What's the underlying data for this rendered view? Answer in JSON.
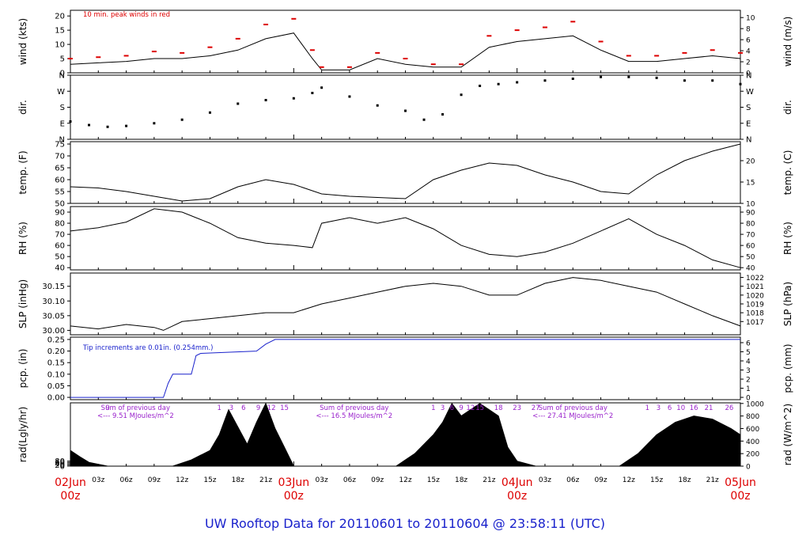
{
  "title": "UW Rooftop Data for 20110601  to  20110604 @ 23:58:11  (UTC)",
  "colors": {
    "title": "#1a22cc",
    "day": "#dd0000",
    "peak": "#dd0000",
    "rain": "#1a22cc",
    "rad_note": "#9a22cc",
    "trace": "#000000"
  },
  "chart_data": [
    {
      "id": "wind",
      "type": "line",
      "ylabel_left": "wind (kts)",
      "ylabel_right": "wind (m/s)",
      "ylim": [
        0,
        22
      ],
      "ticks_left": [
        0,
        5,
        10,
        15,
        20
      ],
      "ticks_right": {
        "0": 0,
        "2": 3.89,
        "4": 7.78,
        "6": 11.66,
        "8": 15.55,
        "10": 19.44
      },
      "annotation": "10 min. peak winds in red",
      "series": [
        {
          "name": "wind",
          "color": "#000000",
          "x": [
            0,
            3,
            6,
            9,
            12,
            15,
            18,
            21,
            24,
            26,
            27,
            30,
            33,
            36,
            39,
            42,
            45,
            48,
            51,
            54,
            57,
            60,
            63,
            66,
            69,
            72
          ],
          "y": [
            3,
            3.5,
            4,
            5,
            5,
            6,
            8,
            12,
            14,
            5,
            1,
            1,
            5,
            3,
            2,
            2,
            9,
            11,
            12,
            13,
            8,
            4,
            4,
            5,
            6,
            5
          ]
        },
        {
          "name": "10 min. peak winds",
          "color": "#dd0000",
          "x": [
            0,
            3,
            6,
            9,
            12,
            15,
            18,
            21,
            24,
            26,
            27,
            30,
            33,
            36,
            39,
            42,
            45,
            48,
            51,
            54,
            57,
            60,
            63,
            66,
            69,
            72
          ],
          "y": [
            5,
            5.5,
            6,
            7.5,
            7,
            9,
            12,
            17,
            19,
            8,
            2,
            2,
            7,
            5,
            3,
            3,
            13,
            15,
            16,
            18,
            11,
            6,
            6,
            7,
            8,
            7
          ]
        }
      ]
    },
    {
      "id": "dir",
      "type": "scatter",
      "ylabel_left": "dir.",
      "ylabel_right": "dir.",
      "ylim": [
        0,
        360
      ],
      "ticks_left": {
        "N": 0,
        "E": 90,
        "S": 180,
        "W": 270,
        "N2": 360
      },
      "tick_labels": [
        "N",
        "E",
        "S",
        "W",
        "N"
      ],
      "series": [
        {
          "name": "dir",
          "color": "#000000",
          "x": [
            0,
            2,
            4,
            6,
            9,
            12,
            15,
            18,
            21,
            24,
            26,
            27,
            30,
            33,
            36,
            38,
            40,
            42,
            44,
            46,
            48,
            51,
            54,
            57,
            60,
            63,
            66,
            69,
            72
          ],
          "y": [
            100,
            80,
            70,
            75,
            90,
            110,
            150,
            200,
            220,
            230,
            260,
            290,
            240,
            190,
            160,
            110,
            140,
            250,
            300,
            310,
            320,
            330,
            340,
            350,
            350,
            345,
            330,
            330,
            310
          ]
        }
      ]
    },
    {
      "id": "temp",
      "type": "line",
      "ylabel_left": "temp. (F)",
      "ylabel_right": "temp. (C)",
      "ylim": [
        50,
        76
      ],
      "ticks_left": [
        50,
        55,
        60,
        65,
        70,
        75
      ],
      "ticks_right": {
        "10": 50,
        "15": 59,
        "20": 68,
        "25": 77
      },
      "series": [
        {
          "name": "temp",
          "color": "#000000",
          "x": [
            0,
            3,
            6,
            9,
            12,
            15,
            18,
            21,
            24,
            27,
            30,
            33,
            36,
            39,
            42,
            45,
            48,
            51,
            54,
            57,
            60,
            63,
            66,
            69,
            72
          ],
          "y": [
            57,
            56.5,
            55,
            53,
            51,
            52,
            57,
            60,
            58,
            54,
            53,
            52.5,
            52,
            60,
            64,
            67,
            66,
            62,
            59,
            55,
            54,
            62,
            68,
            72,
            75
          ]
        }
      ]
    },
    {
      "id": "rh",
      "type": "line",
      "ylabel_left": "RH (%)",
      "ylabel_right": "RH (%)",
      "ylim": [
        38,
        95
      ],
      "ticks_left": [
        40,
        50,
        60,
        70,
        80,
        90
      ],
      "ticks_right": {
        "40": 40,
        "50": 50,
        "60": 60,
        "70": 70,
        "80": 80,
        "90": 90
      },
      "series": [
        {
          "name": "RH",
          "color": "#000000",
          "x": [
            0,
            3,
            6,
            9,
            12,
            15,
            18,
            21,
            24,
            26,
            27,
            30,
            33,
            36,
            39,
            42,
            45,
            48,
            51,
            54,
            57,
            60,
            63,
            66,
            69,
            72
          ],
          "y": [
            73,
            76,
            81,
            93,
            90,
            80,
            67,
            62,
            60,
            58,
            80,
            85,
            80,
            85,
            75,
            60,
            52,
            50,
            54,
            62,
            73,
            84,
            70,
            60,
            47,
            40
          ]
        }
      ]
    },
    {
      "id": "slp",
      "type": "line",
      "ylabel_left": "SLP (inHg)",
      "ylabel_right": "SLP (hPa)",
      "ylim": [
        29.985,
        30.195
      ],
      "ticks_left": [
        30.0,
        30.05,
        30.1,
        30.15
      ],
      "tick_labels_left": [
        "30.00",
        "30.05",
        "30.10",
        "30.15"
      ],
      "ticks_right": {
        "1017": 30.03,
        "1018": 30.06,
        "1019": 30.09,
        "1020": 30.12,
        "1021": 30.15,
        "1022": 30.18
      },
      "series": [
        {
          "name": "SLP",
          "color": "#000000",
          "x": [
            0,
            3,
            6,
            9,
            10,
            12,
            15,
            18,
            21,
            24,
            27,
            30,
            33,
            36,
            39,
            42,
            45,
            48,
            51,
            54,
            57,
            60,
            63,
            66,
            69,
            72
          ],
          "y": [
            30.015,
            30.005,
            30.02,
            30.01,
            30.0,
            30.03,
            30.04,
            30.05,
            30.06,
            30.06,
            30.09,
            30.11,
            30.13,
            30.15,
            30.16,
            30.15,
            30.12,
            30.12,
            30.16,
            30.18,
            30.17,
            30.15,
            30.13,
            30.09,
            30.05,
            30.015
          ]
        }
      ]
    },
    {
      "id": "pcp",
      "type": "line",
      "ylabel_left": "pcp. (in)",
      "ylabel_right": "pcp. (mm)",
      "ylim": [
        -0.01,
        0.26
      ],
      "ticks_left": [
        0.0,
        0.05,
        0.1,
        0.15,
        0.2,
        0.25
      ],
      "tick_labels_left": [
        "0.00",
        "0.05",
        "0.10",
        "0.15",
        "0.20",
        "0.25"
      ],
      "ticks_right": {
        "0": 0,
        "1": 0.0394,
        "2": 0.0787,
        "3": 0.1181,
        "4": 0.1575,
        "5": 0.1969,
        "6": 0.2362
      },
      "annotation": "Tip increments are 0.01in. (0.254mm.)",
      "series": [
        {
          "name": "pcp",
          "color": "#1a22cc",
          "x": [
            0,
            10,
            10.5,
            11,
            13,
            13.5,
            14,
            20,
            21,
            22,
            72
          ],
          "y": [
            0,
            0,
            0.06,
            0.1,
            0.1,
            0.18,
            0.19,
            0.2,
            0.23,
            0.25,
            0.25
          ]
        }
      ]
    },
    {
      "id": "rad",
      "type": "area",
      "ylabel_left": "rad(Lgly/hr)",
      "ylabel_right": "rad (W/m^2)",
      "ylim": [
        0,
        1010
      ],
      "ticks_left": [
        0,
        20,
        40,
        60,
        80
      ],
      "ticks_right": {
        "0": 0,
        "200": 200,
        "400": 400,
        "600": 600,
        "800": 800,
        "1000": 1000
      },
      "series": [
        {
          "name": "rad",
          "color": "#000000",
          "x": [
            0,
            1,
            2,
            4,
            11,
            13,
            15,
            16,
            17,
            19,
            20,
            21,
            22,
            23,
            24,
            28,
            35,
            37,
            39,
            40,
            41,
            42,
            43,
            44,
            45,
            46,
            47,
            48,
            50,
            59,
            61,
            63,
            65,
            67,
            69,
            71,
            72
          ],
          "y": [
            250,
            150,
            60,
            0,
            0,
            100,
            250,
            500,
            900,
            350,
            700,
            1000,
            600,
            300,
            0,
            0,
            0,
            200,
            500,
            700,
            1000,
            800,
            900,
            1000,
            900,
            800,
            300,
            80,
            0,
            0,
            200,
            500,
            700,
            800,
            750,
            600,
            500
          ]
        }
      ]
    }
  ],
  "hour_labels": {
    "positions": [
      3,
      6,
      9,
      12,
      15,
      18,
      21,
      27,
      30,
      33,
      36,
      39,
      42,
      45,
      51,
      54,
      57,
      60,
      63,
      66,
      69
    ],
    "labels": [
      "03z",
      "06z",
      "09z",
      "12z",
      "15z",
      "18z",
      "21z",
      "03z",
      "06z",
      "09z",
      "12z",
      "15z",
      "18z",
      "21z",
      "03z",
      "06z",
      "09z",
      "12z",
      "15z",
      "18z",
      "21z"
    ]
  },
  "day_labels": [
    {
      "x": 0,
      "line1": "02Jun",
      "line2": "00z"
    },
    {
      "x": 24,
      "line1": "03Jun",
      "line2": "00z"
    },
    {
      "x": 48,
      "line1": "04Jun",
      "line2": "00z"
    },
    {
      "x": 72,
      "line1": "05Jun",
      "line2": "00z"
    }
  ],
  "rad_notes": [
    {
      "x": 4,
      "text": "9"
    },
    {
      "x": 16,
      "text": "1"
    },
    {
      "x": 17.3,
      "text": "3"
    },
    {
      "x": 18.6,
      "text": "6"
    },
    {
      "x": 20.2,
      "text": "9"
    },
    {
      "x": 21.6,
      "text": "12"
    },
    {
      "x": 23,
      "text": "15"
    },
    {
      "x": 39,
      "text": "1"
    },
    {
      "x": 40,
      "text": "3"
    },
    {
      "x": 41,
      "text": "6"
    },
    {
      "x": 42,
      "text": "9"
    },
    {
      "x": 43,
      "text": "12"
    },
    {
      "x": 44,
      "text": "15"
    },
    {
      "x": 46,
      "text": "18"
    },
    {
      "x": 48,
      "text": "23"
    },
    {
      "x": 50,
      "text": "27"
    },
    {
      "x": 62,
      "text": "1"
    },
    {
      "x": 63.2,
      "text": "3"
    },
    {
      "x": 64.4,
      "text": "6"
    },
    {
      "x": 65.6,
      "text": "10"
    },
    {
      "x": 67,
      "text": "16"
    },
    {
      "x": 68.6,
      "text": "21"
    },
    {
      "x": 70.8,
      "text": "26"
    }
  ],
  "rad_sums": [
    {
      "x": 7,
      "line1": "Sum of previous day",
      "line2": "<--- 9.51 MJoules/m^2"
    },
    {
      "x": 30.5,
      "line1": "Sum of previous day",
      "line2": "<--- 16.5 MJoules/m^2"
    },
    {
      "x": 54,
      "line1": "Sum of previous day",
      "line2": "<--- 27.41 MJoules/m^2"
    }
  ]
}
